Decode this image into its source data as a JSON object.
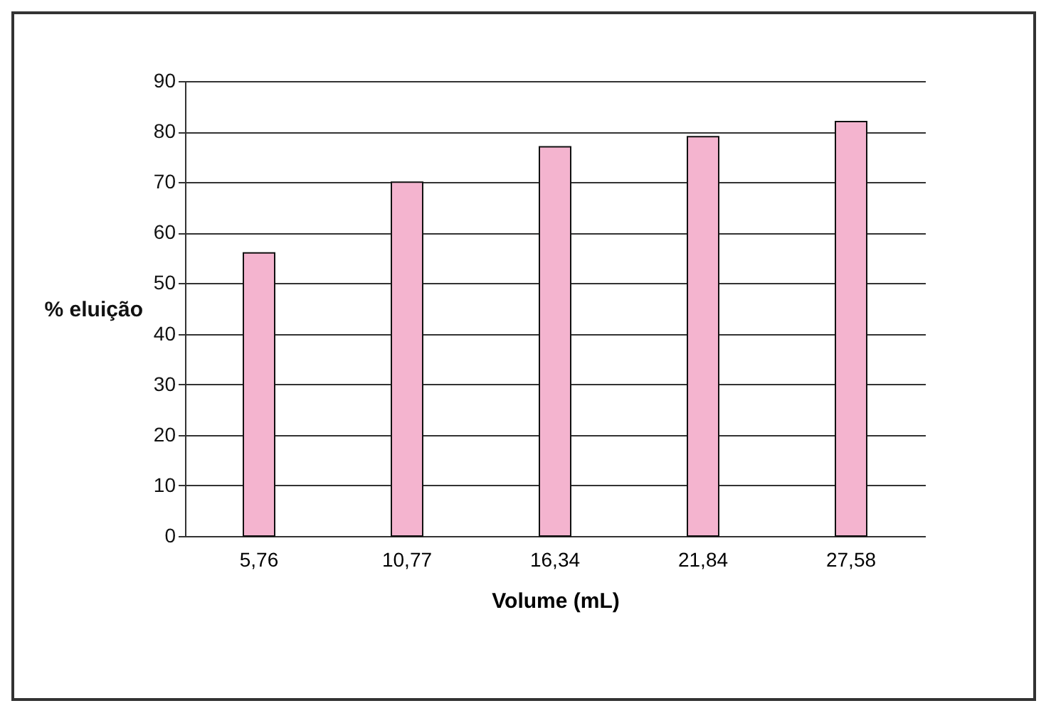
{
  "chart_data": {
    "type": "bar",
    "xlabel": "Volume (mL)",
    "ylabel": "% eluição",
    "categories": [
      "5,76",
      "10,77",
      "16,34",
      "21,84",
      "27,58"
    ],
    "values": [
      56,
      70,
      77,
      79,
      82
    ],
    "color": "#f4b4cf",
    "ylim": [
      0,
      90
    ],
    "yticks": [
      0,
      10,
      20,
      30,
      40,
      50,
      60,
      70,
      80,
      90
    ],
    "grid": "y"
  }
}
